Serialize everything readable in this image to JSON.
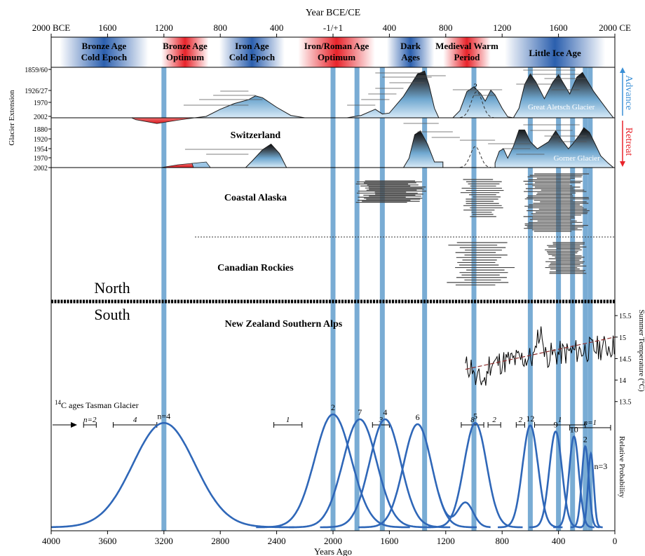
{
  "chart_data": {
    "type": "line",
    "top_axis": {
      "label": "Year BCE/CE",
      "ticks": [
        "2000 BCE",
        "1600",
        "1200",
        "800",
        "400",
        "-1/+1",
        "400",
        "800",
        "1200",
        "1600",
        "2000 CE"
      ],
      "years_ago": [
        4000,
        3600,
        3200,
        2800,
        2400,
        2000,
        1600,
        1200,
        800,
        400,
        0
      ]
    },
    "bottom_axis": {
      "label": "Years Ago",
      "ticks": [
        "4000",
        "3600",
        "3200",
        "2800",
        "2400",
        "2000",
        "1600",
        "1200",
        "800",
        "400",
        "0"
      ],
      "values": [
        4000,
        3600,
        3200,
        2800,
        2400,
        2000,
        1600,
        1200,
        800,
        400,
        0
      ],
      "range": [
        4000,
        0
      ]
    },
    "periods": [
      {
        "name": "Bronze Age\nCold Epoch",
        "from": 4000,
        "to": 3250,
        "kind": "cold"
      },
      {
        "name": "Bronze Age\nOptimum",
        "from": 3250,
        "to": 2850,
        "kind": "warm"
      },
      {
        "name": "Iron Age\nCold Epoch",
        "from": 2850,
        "to": 2300,
        "kind": "cold"
      },
      {
        "name": "Iron/Roman Age\nOptimum",
        "from": 2300,
        "to": 1650,
        "kind": "warm"
      },
      {
        "name": "Dark\nAges",
        "from": 1650,
        "to": 1250,
        "kind": "cold"
      },
      {
        "name": "Medieval Warm\nPeriod",
        "from": 1250,
        "to": 850,
        "kind": "warm"
      },
      {
        "name": "Little Ice Age",
        "from": 850,
        "to": 0,
        "kind": "cold"
      }
    ],
    "glacier_extension_label": "Glacier Extension",
    "advance_label": "Advance",
    "retreat_label": "Retreat",
    "aletsch": {
      "name": "Great Aletsch Glacier",
      "ticks": [
        "1859/60",
        "1926/27",
        "1970",
        "2002"
      ],
      "curve": [
        [
          4000,
          0
        ],
        [
          3600,
          0
        ],
        [
          3400,
          -0.04
        ],
        [
          3250,
          -0.12
        ],
        [
          3100,
          -0.05
        ],
        [
          2980,
          0
        ],
        [
          2900,
          0.03
        ],
        [
          2800,
          0.18
        ],
        [
          2700,
          0.3
        ],
        [
          2600,
          0.38
        ],
        [
          2550,
          0.46
        ],
        [
          2500,
          0.42
        ],
        [
          2400,
          0.22
        ],
        [
          2300,
          0.05
        ],
        [
          2200,
          0
        ],
        [
          2100,
          -0.02
        ],
        [
          2000,
          -0.02
        ],
        [
          1900,
          0
        ],
        [
          1800,
          0.05
        ],
        [
          1700,
          0.18
        ],
        [
          1650,
          0.08
        ],
        [
          1600,
          0.1
        ],
        [
          1500,
          0.45
        ],
        [
          1400,
          0.92
        ],
        [
          1350,
          0.98
        ],
        [
          1320,
          0.7
        ],
        [
          1280,
          0.2
        ],
        [
          1250,
          0
        ],
        [
          1150,
          0
        ],
        [
          1100,
          0.15
        ],
        [
          1050,
          0.55
        ],
        [
          1000,
          0.65
        ],
        [
          950,
          0.5
        ],
        [
          920,
          0.35
        ],
        [
          880,
          0.58
        ],
        [
          850,
          0.48
        ],
        [
          800,
          0.2
        ],
        [
          760,
          0.02
        ],
        [
          720,
          0
        ],
        [
          680,
          0.2
        ],
        [
          640,
          0.7
        ],
        [
          600,
          0.92
        ],
        [
          560,
          0.75
        ],
        [
          500,
          0.4
        ],
        [
          440,
          0.75
        ],
        [
          400,
          0.9
        ],
        [
          360,
          0.7
        ],
        [
          320,
          0.5
        ],
        [
          270,
          0.85
        ],
        [
          230,
          0.95
        ],
        [
          200,
          0.8
        ],
        [
          150,
          0.55
        ],
        [
          100,
          0.35
        ],
        [
          50,
          0.15
        ],
        [
          10,
          0
        ]
      ],
      "question_mark": "?"
    },
    "gorner": {
      "name": "Gorner Glacier",
      "region_label": "Switzerland",
      "ticks": [
        "1880",
        "1920",
        "1954",
        "1970",
        "2002"
      ]
    },
    "region_labels": [
      "Coastal Alaska",
      "Canadian Rockies",
      "New Zealand Southern Alps"
    ],
    "hemisphere_labels": [
      "North",
      "South"
    ],
    "highlight_years_ago": [
      3200,
      2000,
      1830,
      1650,
      1350,
      1000,
      600,
      400,
      300,
      210,
      175
    ],
    "temperature": {
      "ylabel": "Summer Temperature (°C)",
      "ticks": [
        "15.5",
        "15",
        "14.5",
        "14",
        "13.5"
      ],
      "tick_values": [
        15.5,
        15,
        14.5,
        14,
        13.5
      ],
      "range_years_ago": [
        1060,
        0
      ],
      "trend": [
        [
          1060,
          14.25
        ],
        [
          0,
          15.0
        ]
      ]
    },
    "c14_label": "C ages Tasman Glacier",
    "c14_superscript": "14",
    "c14_brackets": [
      {
        "from": 3770,
        "to": 3680,
        "label": "n=2"
      },
      {
        "from": 3560,
        "to": 3250,
        "label": "4"
      },
      {
        "from": 2420,
        "to": 2220,
        "label": "1"
      },
      {
        "from": 1720,
        "to": 1600,
        "label": "3"
      },
      {
        "from": 1090,
        "to": 930,
        "label": "8"
      },
      {
        "from": 900,
        "to": 810,
        "label": "2"
      },
      {
        "from": 700,
        "to": 640,
        "label": "2"
      },
      {
        "from": 570,
        "to": 210,
        "label": "1"
      },
      {
        "from": 320,
        "to": 30,
        "label": "n=1"
      }
    ],
    "probability": {
      "ylabel": "Relative Probability",
      "peaks": [
        {
          "center": 3200,
          "sigma": 220,
          "height": 0.85,
          "label": "n=4"
        },
        {
          "center": 2000,
          "sigma": 130,
          "height": 0.92,
          "label": "2"
        },
        {
          "center": 1810,
          "sigma": 120,
          "height": 0.88,
          "label": "7"
        },
        {
          "center": 1630,
          "sigma": 110,
          "height": 0.88,
          "label": "4"
        },
        {
          "center": 1400,
          "sigma": 100,
          "height": 0.84,
          "label": "6"
        },
        {
          "center": 990,
          "sigma": 80,
          "height": 0.85,
          "label": "5"
        },
        {
          "center": 600,
          "sigma": 55,
          "height": 0.83,
          "label": "12"
        },
        {
          "center": 420,
          "sigma": 45,
          "height": 0.78,
          "label": "9"
        },
        {
          "center": 290,
          "sigma": 35,
          "height": 0.74,
          "label": "10"
        },
        {
          "center": 210,
          "sigma": 25,
          "height": 0.66,
          "label": "2"
        },
        {
          "center": 170,
          "sigma": 20,
          "height": 0.6,
          "label": "n=3"
        }
      ]
    },
    "colors": {
      "highlight": "#6aa3cf",
      "curve": "#2f67b8",
      "warm": "#e8232a",
      "cold": "#2b5fae"
    }
  }
}
